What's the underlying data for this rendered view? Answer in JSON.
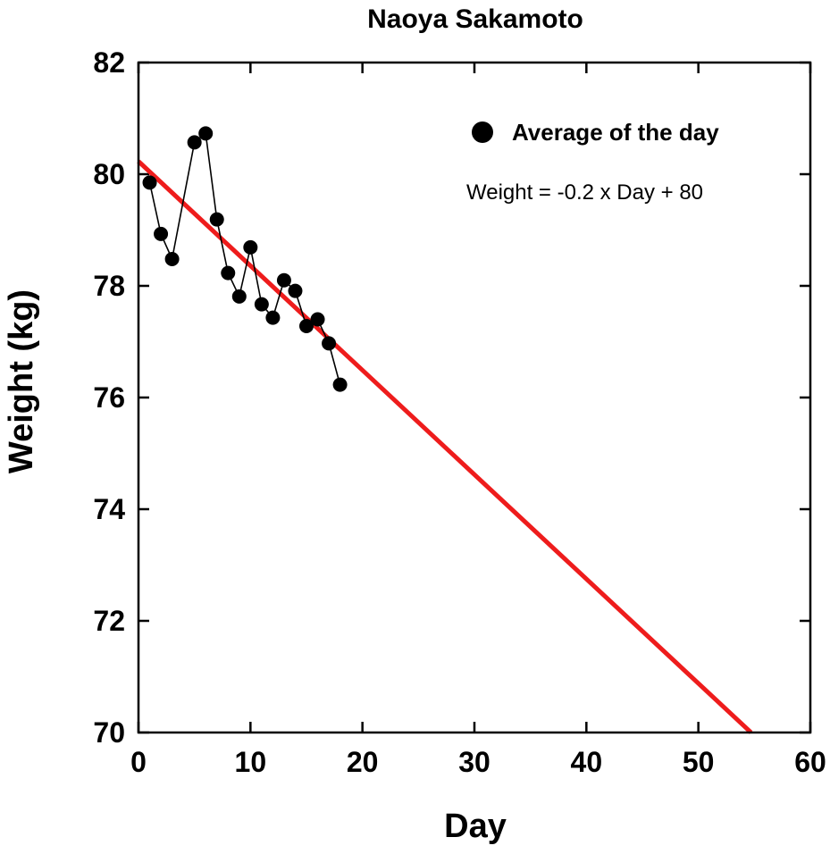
{
  "chart_data": {
    "type": "scatter",
    "title": "Naoya Sakamoto",
    "xlabel": "Day",
    "ylabel": "Weight (kg)",
    "xlim": [
      0,
      60
    ],
    "ylim": [
      70,
      82
    ],
    "xticks": [
      0,
      10,
      20,
      30,
      40,
      50,
      60
    ],
    "yticks": [
      70,
      72,
      74,
      76,
      78,
      80,
      82
    ],
    "grid": false,
    "legend_position": "top-right",
    "series": [
      {
        "name": "Average of the day",
        "type": "line+markers",
        "color": "#000000",
        "x": [
          1,
          2,
          3,
          5,
          6,
          7,
          8,
          9,
          10,
          11,
          12,
          13,
          14,
          15,
          16,
          17,
          18
        ],
        "y": [
          79.85,
          78.93,
          78.48,
          80.57,
          80.73,
          79.19,
          78.23,
          77.81,
          78.69,
          77.67,
          77.43,
          78.1,
          77.91,
          77.28,
          77.4,
          76.97,
          76.23
        ]
      }
    ],
    "trendline": {
      "color": "#ee1c1c",
      "slope": -0.187,
      "intercept": 80.23,
      "x_range": [
        0,
        54.7
      ]
    },
    "annotation": "Weight = -0.2 x Day + 80"
  }
}
